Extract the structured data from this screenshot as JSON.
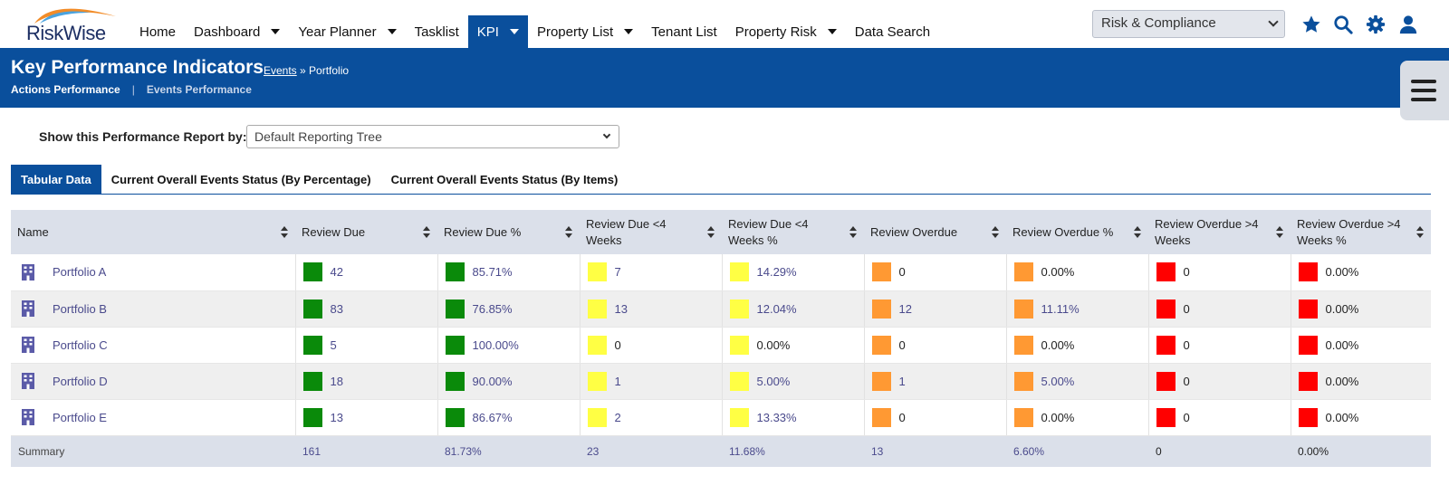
{
  "brand": {
    "logo_text": "RiskWise"
  },
  "nav": {
    "items": [
      {
        "label": "Home",
        "caret": false,
        "active": false
      },
      {
        "label": "Dashboard",
        "caret": true,
        "active": false
      },
      {
        "label": "Year Planner",
        "caret": true,
        "active": false
      },
      {
        "label": "Tasklist",
        "caret": false,
        "active": false
      },
      {
        "label": "KPI",
        "caret": true,
        "active": true
      },
      {
        "label": "Property List",
        "caret": true,
        "active": false
      },
      {
        "label": "Tenant List",
        "caret": false,
        "active": false
      },
      {
        "label": "Property Risk",
        "caret": true,
        "active": false
      },
      {
        "label": "Data Search",
        "caret": false,
        "active": false
      }
    ],
    "module_select_value": "Risk & Compliance",
    "icons": [
      "star-icon",
      "search-icon",
      "gear-icon",
      "user-icon"
    ]
  },
  "header": {
    "title": "Key Performance Indicators",
    "breadcrumb_link": "Events",
    "breadcrumb_rest": " » Portfolio",
    "subnav_active": "Actions Performance",
    "subnav_other": "Events Performance"
  },
  "report": {
    "label": "Show this Performance Report by:",
    "selected": "Default Reporting Tree"
  },
  "tabs": [
    {
      "label": "Tabular Data",
      "active": true
    },
    {
      "label": "Current Overall Events Status (By Percentage)",
      "active": false
    },
    {
      "label": "Current Overall Events Status (By Items)",
      "active": false
    }
  ],
  "table": {
    "columns": [
      [
        "Name"
      ],
      [
        "Review Due"
      ],
      [
        "Review Due %"
      ],
      [
        "Review Due <4",
        "Weeks"
      ],
      [
        "Review Due <4",
        "Weeks %"
      ],
      [
        "Review Overdue"
      ],
      [
        "Review Overdue %"
      ],
      [
        "Review Overdue >4",
        "Weeks"
      ],
      [
        "Review Overdue >4",
        "Weeks %"
      ]
    ],
    "column_status": [
      "",
      "green",
      "green",
      "yellow",
      "yellow",
      "orange",
      "orange",
      "red",
      "red"
    ],
    "rows": [
      {
        "name": "Portfolio A",
        "values": [
          "42",
          "85.71%",
          "7",
          "14.29%",
          "0",
          "0.00%",
          "0",
          "0.00%"
        ],
        "linked": [
          true,
          true,
          true,
          true,
          false,
          false,
          false,
          false
        ]
      },
      {
        "name": "Portfolio B",
        "values": [
          "83",
          "76.85%",
          "13",
          "12.04%",
          "12",
          "11.11%",
          "0",
          "0.00%"
        ],
        "linked": [
          true,
          true,
          true,
          true,
          true,
          true,
          false,
          false
        ]
      },
      {
        "name": "Portfolio C",
        "values": [
          "5",
          "100.00%",
          "0",
          "0.00%",
          "0",
          "0.00%",
          "0",
          "0.00%"
        ],
        "linked": [
          true,
          true,
          false,
          false,
          false,
          false,
          false,
          false
        ]
      },
      {
        "name": "Portfolio D",
        "values": [
          "18",
          "90.00%",
          "1",
          "5.00%",
          "1",
          "5.00%",
          "0",
          "0.00%"
        ],
        "linked": [
          true,
          true,
          true,
          true,
          true,
          true,
          false,
          false
        ]
      },
      {
        "name": "Portfolio E",
        "values": [
          "13",
          "86.67%",
          "2",
          "13.33%",
          "0",
          "0.00%",
          "0",
          "0.00%"
        ],
        "linked": [
          true,
          true,
          true,
          true,
          false,
          false,
          false,
          false
        ]
      }
    ],
    "summary": {
      "label": "Summary",
      "values": [
        "161",
        "81.73%",
        "23",
        "11.68%",
        "13",
        "6.60%",
        "0",
        "0.00%"
      ]
    }
  },
  "colors": {
    "brand_blue": "#0a4f9c",
    "green": "#0a8a0a",
    "yellow": "#ffff44",
    "orange": "#ff9933",
    "red": "#ff0000",
    "link": "#4a4a8c"
  }
}
